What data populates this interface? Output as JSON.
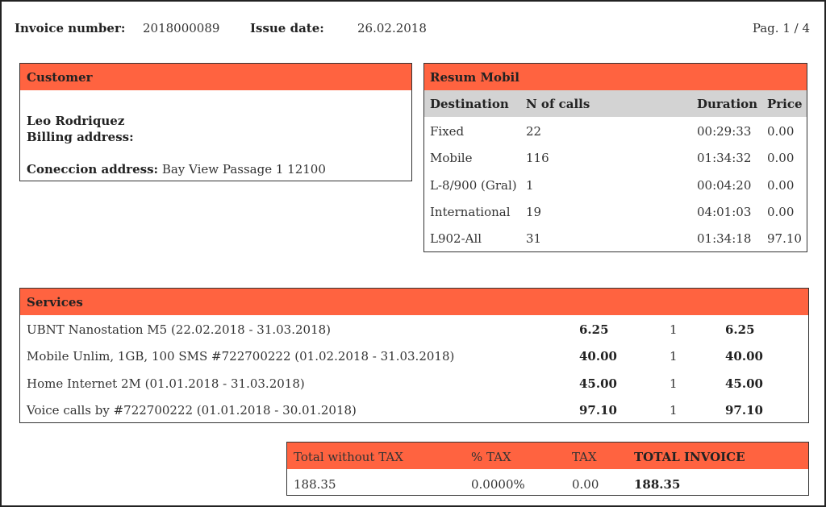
{
  "header": {
    "invoice_number_label": "Invoice number:",
    "invoice_number": "2018000089",
    "issue_date_label": "Issue date:",
    "issue_date": "26.02.2018",
    "page": "Pag. 1 / 4"
  },
  "customer": {
    "title": "Customer",
    "name": "Leo Rodriquez",
    "billing_label": "Billing address:",
    "connection_label": "Coneccion address:",
    "connection_address": "Bay View Passage 1 12100"
  },
  "resum": {
    "title": "Resum Mobil",
    "headers": [
      "Destination",
      "N of calls",
      "Duration",
      "Price"
    ],
    "rows": [
      [
        "Fixed",
        "22",
        "00:29:33",
        "0.00"
      ],
      [
        "Mobile",
        "116",
        "01:34:32",
        "0.00"
      ],
      [
        "L-8/900 (Gral)",
        "1",
        "00:04:20",
        "0.00"
      ],
      [
        "International",
        "19",
        "04:01:03",
        "0.00"
      ],
      [
        "L902-All",
        "31",
        "01:34:18",
        "97.10"
      ]
    ]
  },
  "services": {
    "title": "Services",
    "rows": [
      [
        "UBNT Nanostation M5 (22.02.2018 - 31.03.2018)",
        "6.25",
        "1",
        "6.25"
      ],
      [
        "Mobile Unlim, 1GB, 100 SMS #722700222 (01.02.2018 - 31.03.2018)",
        "40.00",
        "1",
        "40.00"
      ],
      [
        "Home Internet 2M (01.01.2018 - 31.03.2018)",
        "45.00",
        "1",
        "45.00"
      ],
      [
        "Voice calls by #722700222 (01.01.2018 - 30.01.2018)",
        "97.10",
        "1",
        "97.10"
      ]
    ]
  },
  "totals": {
    "headers": [
      "Total without TAX",
      "% TAX",
      "TAX",
      "TOTAL INVOICE"
    ],
    "values": [
      "188.35",
      "0.0000%",
      "0.00",
      "188.35"
    ]
  }
}
